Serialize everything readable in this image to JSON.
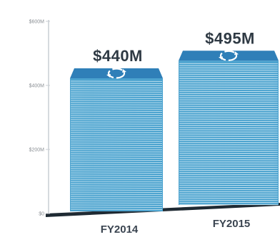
{
  "chart_data": {
    "type": "bar",
    "categories": [
      "FY2014",
      "FY2015"
    ],
    "values": [
      440,
      495
    ],
    "value_labels": [
      "$440M",
      "$495M"
    ],
    "yticks": [
      {
        "value": 0,
        "label": "$0"
      },
      {
        "value": 200,
        "label": "$200M"
      },
      {
        "value": 400,
        "label": "$400M"
      },
      {
        "value": 600,
        "label": "$600M"
      }
    ],
    "ylim": [
      0,
      600
    ],
    "title": "",
    "xlabel": "",
    "ylabel": "",
    "grid": false,
    "bar_style": "stack-of-money",
    "bar_icon": "currency-exchange-icon",
    "colors": {
      "bar_top": "#2f7fb8",
      "bar_side": "#4ca3cf",
      "bar_line": "#d6ecf5",
      "axis": "#1f2a33",
      "text": "#2f3a44"
    }
  }
}
